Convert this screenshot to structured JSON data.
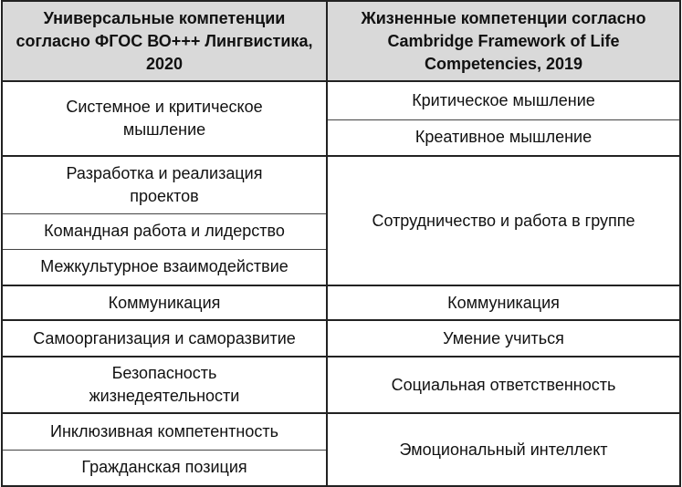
{
  "header": {
    "left": "Универсальные компетенции согласно ФГОС ВО+++ Лингвистика, 2020",
    "right": "Жизненные компетенции согласно Cambridge Framework of Life Competencies, 2019"
  },
  "rows": {
    "l1": "Системное и критическое мышление",
    "r1": "Критическое мышление",
    "r2": "Креативное мышление",
    "l3": "Разработка и реализация проектов",
    "r3": "Сотрудничество и работа в группе",
    "l4": "Командная работа и лидерство",
    "l5": "Межкультурное взаимодействие",
    "l6": "Коммуникация",
    "r6": "Коммуникация",
    "l7": "Самоорганизация и саморазвитие",
    "r7": "Умение учиться",
    "l8": "Безопасность жизнедеятельности",
    "r8": "Социальная ответственность",
    "l9": "Инклюзивная компетентность",
    "r9": "Эмоциональный интеллект",
    "l10": "Гражданская позиция"
  }
}
